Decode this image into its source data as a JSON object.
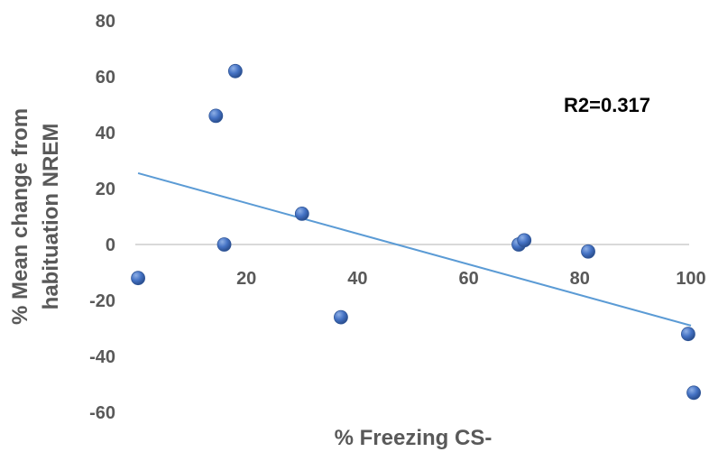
{
  "chart_data": {
    "type": "scatter",
    "title": "",
    "xlabel": "% Freezing CS-",
    "ylabel_lines": [
      "% Mean change from",
      "habituation NREM"
    ],
    "xlim": [
      0,
      100
    ],
    "ylim": [
      -60,
      80
    ],
    "x_ticks": [
      20,
      40,
      60,
      80,
      100
    ],
    "y_ticks": [
      80,
      60,
      40,
      20,
      0,
      -20,
      -40,
      -60
    ],
    "grid": false,
    "legend": "none",
    "annotation": "R2=0.317",
    "series": [
      {
        "points": [
          {
            "x": 0.5,
            "y": -12
          },
          {
            "x": 14.5,
            "y": 46
          },
          {
            "x": 16,
            "y": 0
          },
          {
            "x": 18,
            "y": 62
          },
          {
            "x": 30,
            "y": 11
          },
          {
            "x": 37,
            "y": -26
          },
          {
            "x": 69,
            "y": 0
          },
          {
            "x": 70,
            "y": 1.5
          },
          {
            "x": 81.5,
            "y": -2.5
          },
          {
            "x": 99.5,
            "y": -32
          },
          {
            "x": 100.5,
            "y": -53
          }
        ]
      }
    ],
    "trendline": {
      "x": [
        0.5,
        100
      ],
      "y": [
        25.5,
        -29
      ]
    },
    "colors": {
      "marker": "#4472C4",
      "trendline": "#5B9BD5",
      "axis_text": "#595959",
      "axis_line": "#D9D9D9"
    }
  }
}
